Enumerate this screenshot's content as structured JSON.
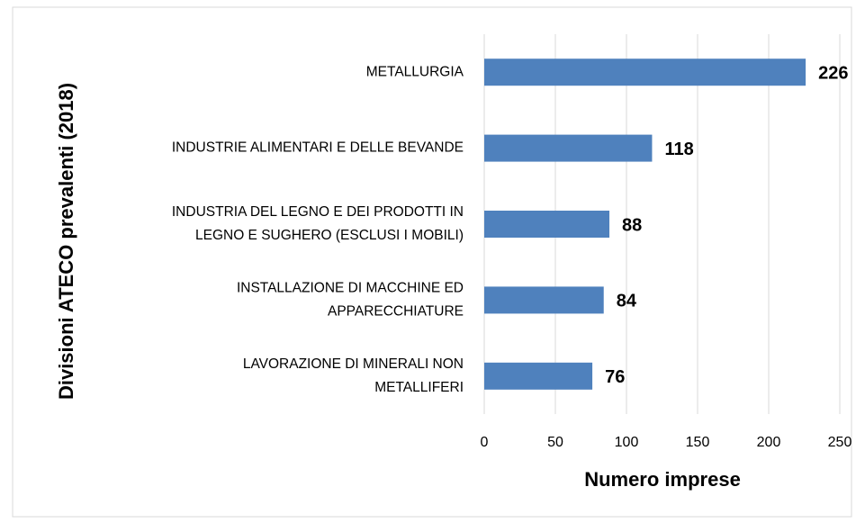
{
  "chart_data": {
    "type": "bar",
    "orientation": "horizontal",
    "x_label": "Numero imprese",
    "y_label": "Divisioni ATECO prevalenti (2018)",
    "categories": [
      "METALLURGIA",
      "INDUSTRIE ALIMENTARI E DELLE BEVANDE",
      "INDUSTRIA DEL LEGNO E DEI PRODOTTI IN\nLEGNO E SUGHERO (ESCLUSI I MOBILI)",
      "INSTALLAZIONE DI MACCHINE ED\nAPPARECCHIATURE",
      "LAVORAZIONE DI MINERALI NON\nMETALLIFERI"
    ],
    "values": [
      226,
      118,
      88,
      84,
      76
    ],
    "color": "#4f81bd",
    "xlim": [
      0,
      250
    ],
    "xticks": [
      0,
      50,
      100,
      150,
      200,
      250
    ],
    "grid": true
  }
}
